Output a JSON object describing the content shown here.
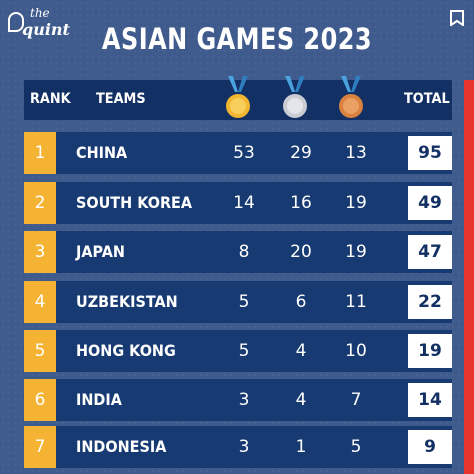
{
  "brand": {
    "line1": "the",
    "line2": "quint"
  },
  "title": "ASIAN GAMES 2023",
  "header": {
    "rank": "RANK",
    "teams": "TEAMS",
    "total": "TOTAL"
  },
  "colors": {
    "gold": "#f2b632",
    "silver": "#c9ccd3",
    "bronze": "#d9823f",
    "ribbon": "#4aa3df",
    "accent": "#e8352e"
  },
  "rows": [
    {
      "rank": "1",
      "team": "CHINA",
      "gold": "53",
      "silver": "29",
      "bronze": "13",
      "total": "95"
    },
    {
      "rank": "2",
      "team": "SOUTH KOREA",
      "gold": "14",
      "silver": "16",
      "bronze": "19",
      "total": "49"
    },
    {
      "rank": "3",
      "team": "JAPAN",
      "gold": "8",
      "silver": "20",
      "bronze": "19",
      "total": "47"
    },
    {
      "rank": "4",
      "team": "UZBEKISTAN",
      "gold": "5",
      "silver": "6",
      "bronze": "11",
      "total": "22"
    },
    {
      "rank": "5",
      "team": "HONG KONG",
      "gold": "5",
      "silver": "4",
      "bronze": "10",
      "total": "19"
    },
    {
      "rank": "6",
      "team": "INDIA",
      "gold": "3",
      "silver": "4",
      "bronze": "7",
      "total": "14"
    },
    {
      "rank": "7",
      "team": "INDONESIA",
      "gold": "3",
      "silver": "1",
      "bronze": "5",
      "total": "9"
    }
  ]
}
